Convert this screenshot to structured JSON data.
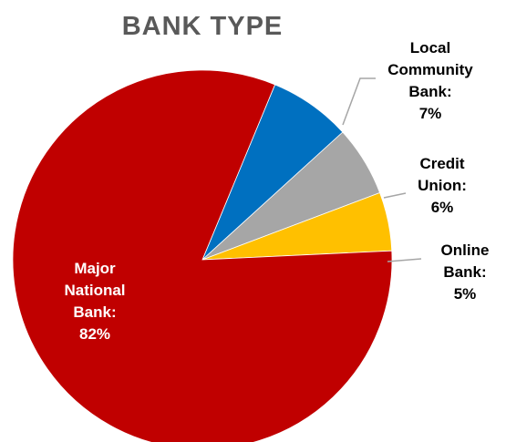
{
  "chart_data": {
    "type": "pie",
    "title": "BANK TYPE",
    "start_angle_deg": 22.5,
    "slices": [
      {
        "category": "Local Community Bank",
        "value": 7,
        "color": "#0070c0",
        "label_lines": [
          "Local",
          "Community",
          "Bank:",
          "7%"
        ],
        "label_color": "#000000"
      },
      {
        "category": "Credit Union",
        "value": 6,
        "color": "#a6a6a6",
        "label_lines": [
          "Credit",
          "Union:",
          "6%"
        ],
        "label_color": "#000000"
      },
      {
        "category": "Online Bank",
        "value": 5,
        "color": "#ffc000",
        "label_lines": [
          "Online",
          "Bank:",
          "5%"
        ],
        "label_color": "#000000"
      },
      {
        "category": "Major National Bank",
        "value": 82,
        "color": "#c00000",
        "label_lines": [
          "Major",
          "National",
          "Bank:",
          "82%"
        ],
        "label_color": "#ffffff"
      }
    ]
  }
}
